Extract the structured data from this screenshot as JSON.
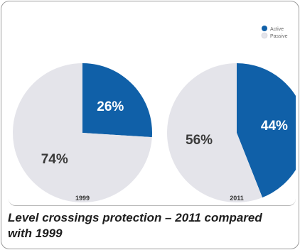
{
  "chart_data": {
    "type": "pie",
    "legend": {
      "placement": "top-right",
      "entries": [
        "Active",
        "Passive"
      ]
    },
    "colors": {
      "Active": "#1060a8",
      "Passive": "#e4e4ea"
    },
    "charts": [
      {
        "label": "1999",
        "values": [
          26,
          74
        ],
        "value_labels": [
          "26%",
          "74%"
        ]
      },
      {
        "label": "2011",
        "values": [
          44,
          56
        ],
        "value_labels": [
          "44%",
          "56%"
        ]
      }
    ]
  },
  "caption": {
    "line1": "Level crossings protection – 2011 compared",
    "line2": "with 1999"
  }
}
